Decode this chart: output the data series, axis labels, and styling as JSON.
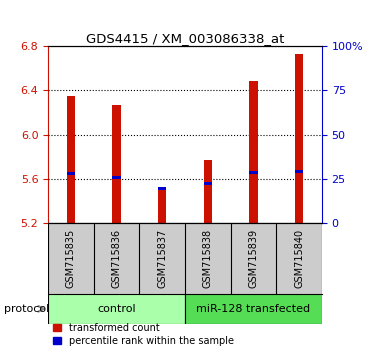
{
  "title": "GDS4415 / XM_003086338_at",
  "samples": [
    "GSM715835",
    "GSM715836",
    "GSM715837",
    "GSM715838",
    "GSM715839",
    "GSM715840"
  ],
  "bar_bottom": 5.2,
  "bar_tops": [
    6.35,
    6.27,
    5.52,
    5.77,
    6.48,
    6.73
  ],
  "blue_markers": [
    5.645,
    5.615,
    5.515,
    5.555,
    5.655,
    5.665
  ],
  "ymin": 5.2,
  "ymax": 6.8,
  "yticks_left": [
    5.2,
    5.6,
    6.0,
    6.4,
    6.8
  ],
  "yticks_right_vals": [
    0,
    25,
    50,
    75,
    100
  ],
  "yticks_right_labels": [
    "0",
    "25",
    "50",
    "75",
    "100%"
  ],
  "bar_color": "#cc1100",
  "blue_color": "#0000cc",
  "control_color": "#aaffaa",
  "transfected_color": "#55dd55",
  "protocol_label": "protocol",
  "control_label": "control",
  "transfected_label": "miR-128 transfected",
  "legend_red_label": "transformed count",
  "legend_blue_label": "percentile rank within the sample",
  "n_control": 3,
  "n_transfected": 3,
  "bar_width": 0.18
}
